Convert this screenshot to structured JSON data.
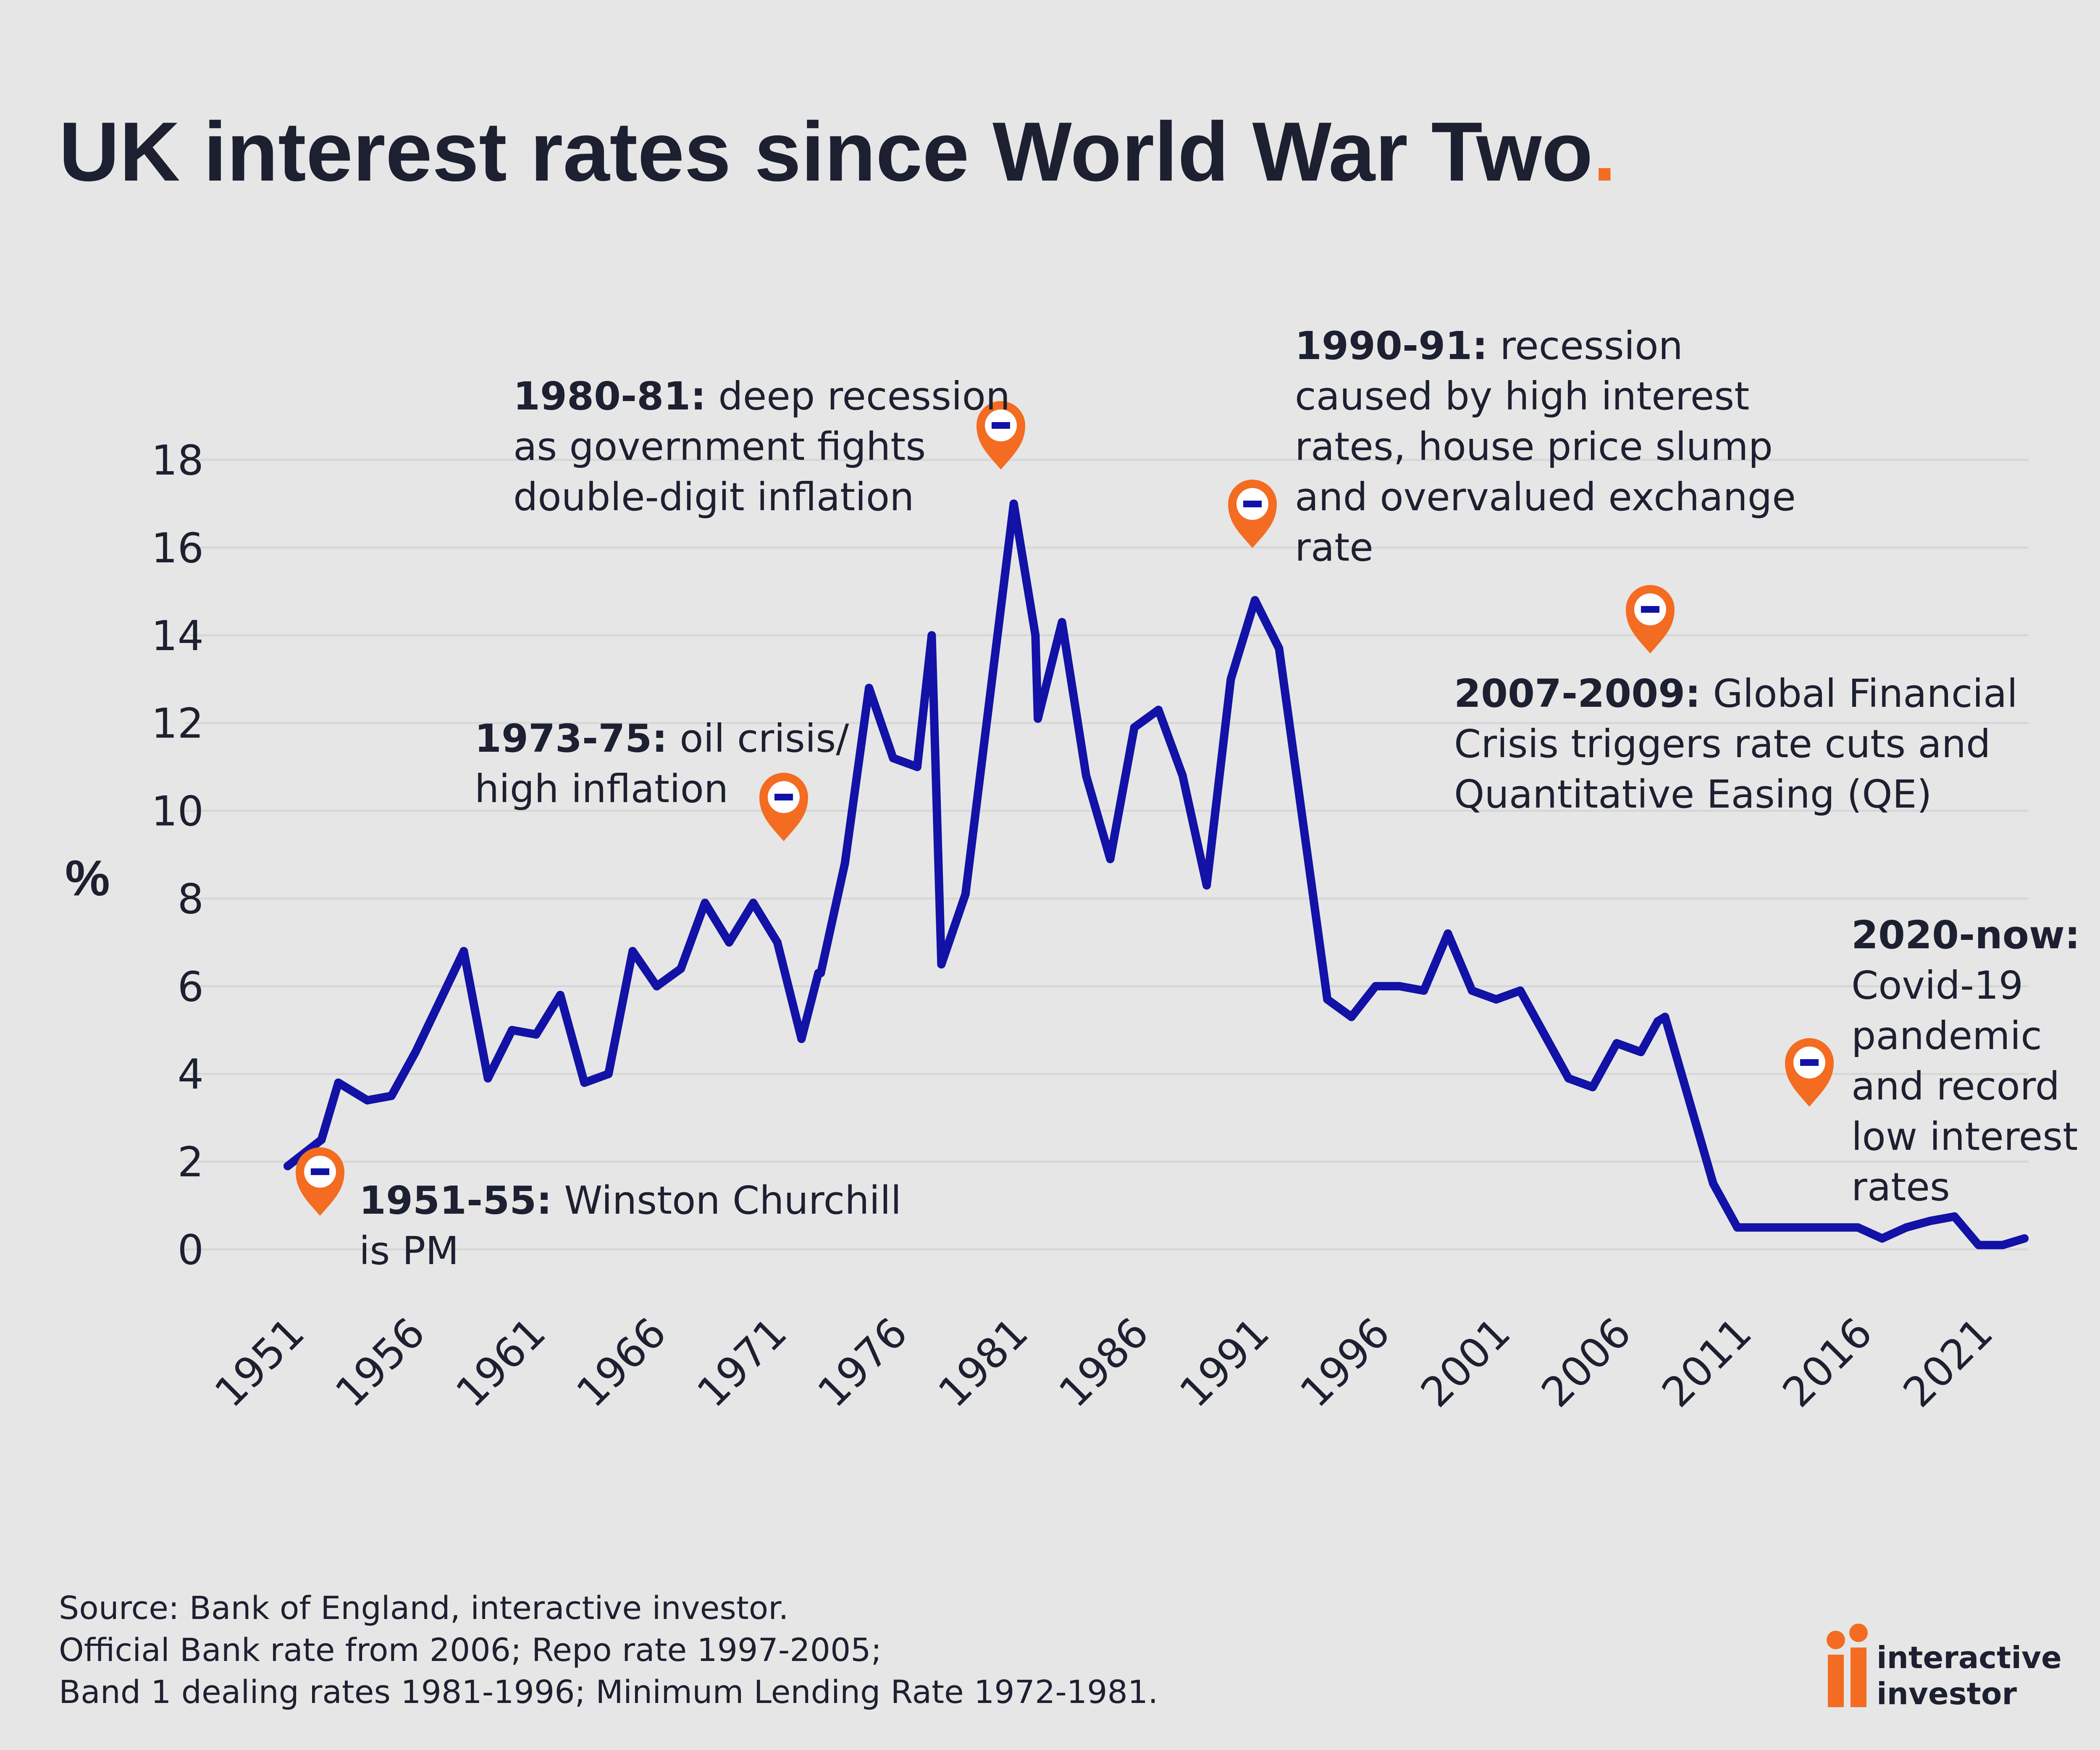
{
  "title": "UK interest rates since World War Two",
  "title_dot": ".",
  "colors": {
    "line": "#1212a6",
    "accent": "#f36c21",
    "text": "#1c2030",
    "background": "#e6e6e6",
    "grid": "#d7d7d7"
  },
  "annotations": [
    {
      "bold": "1951-55:",
      "lines": [
        " Winston Churchill",
        "is PM"
      ],
      "icon": "map-pin-icon"
    },
    {
      "bold": "1973-75:",
      "lines": [
        " oil crisis/",
        "high inflation"
      ],
      "icon": "map-pin-icon"
    },
    {
      "bold": "1980-81:",
      "lines": [
        " deep recession",
        "as government fights",
        "double-digit inflation"
      ],
      "icon": "map-pin-icon"
    },
    {
      "bold": "1990-91:",
      "lines": [
        " recession",
        "caused by high interest",
        "rates, house price slump",
        "and overvalued exchange",
        "rate"
      ],
      "icon": "map-pin-icon"
    },
    {
      "bold": "2007-2009:",
      "lines": [
        " Global Financial",
        "Crisis triggers rate cuts and",
        "Quantitative Easing (QE)"
      ],
      "icon": "map-pin-icon"
    },
    {
      "bold": "2020-now:",
      "lines": [
        "",
        "Covid-19",
        "pandemic",
        "and record",
        "low interest",
        "rates"
      ],
      "icon": "map-pin-icon"
    }
  ],
  "source": [
    "Source: Bank of England, interactive investor.",
    "Official Bank rate from 2006; Repo rate 1997-2005;",
    "Band 1 dealing rates 1981-1996; Minimum Lending Rate 1972-1981."
  ],
  "logo": {
    "line1": "interactive",
    "line2": "investor"
  },
  "chart_data": {
    "type": "line",
    "ylabel": "%",
    "ylim": [
      0,
      18
    ],
    "yticks": [
      0,
      2,
      4,
      6,
      8,
      10,
      12,
      14,
      16,
      18
    ],
    "xlim": [
      1951,
      2023
    ],
    "xticks": [
      1951,
      1956,
      1961,
      1966,
      1971,
      1976,
      1981,
      1986,
      1991,
      1996,
      2001,
      2006,
      2011,
      2016,
      2021
    ],
    "grid": true,
    "series": [
      {
        "x": [
          1951,
          1952.4,
          1953.1,
          1954.3,
          1955.3,
          1956.3,
          1958.3,
          1959.3,
          1960.3,
          1961.3,
          1962.3,
          1963.3,
          1964.3,
          1965.3,
          1966.3,
          1967.3,
          1968.3,
          1969.3,
          1970.3,
          1971.3,
          1972.3,
          1973.0,
          1973.1,
          1974.1,
          1975.1,
          1976.1,
          1977.1,
          1977.7,
          1978.1,
          1979.1,
          1981.1,
          1982.0,
          1982.1,
          1983.1,
          1984.1,
          1985.1,
          1986.1,
          1987.1,
          1988.1,
          1989.1,
          1990.1,
          1991.1,
          1992.1,
          1994.1,
          1995.1,
          1996.1,
          1997.1,
          1998.1,
          1999.1,
          2000.1,
          2001.1,
          2002.1,
          2003.1,
          2004.1,
          2005.1,
          2006.1,
          2007.1,
          2007.8,
          2008.1,
          2010.1,
          2011.1,
          2016.1,
          2017.1,
          2018.1,
          2019.1,
          2020.1,
          2021.1,
          2022.1,
          2023.0
        ],
        "y": [
          1.9,
          2.5,
          3.8,
          3.4,
          3.5,
          4.5,
          6.8,
          3.9,
          5.0,
          4.9,
          5.8,
          3.8,
          4.0,
          6.8,
          6.0,
          6.4,
          7.9,
          7.0,
          7.9,
          7.0,
          4.8,
          6.3,
          6.3,
          8.8,
          12.8,
          11.2,
          11.0,
          14.0,
          6.5,
          8.1,
          17.0,
          14.0,
          12.1,
          14.3,
          10.8,
          8.9,
          11.9,
          12.3,
          10.8,
          8.3,
          13.0,
          14.8,
          13.7,
          5.7,
          5.3,
          6.0,
          6.0,
          5.9,
          7.2,
          5.9,
          5.7,
          5.9,
          4.9,
          3.9,
          3.7,
          4.7,
          4.5,
          5.2,
          5.3,
          1.5,
          0.5,
          0.5,
          0.25,
          0.5,
          0.65,
          0.75,
          0.1,
          0.1,
          0.25
        ]
      }
    ]
  }
}
